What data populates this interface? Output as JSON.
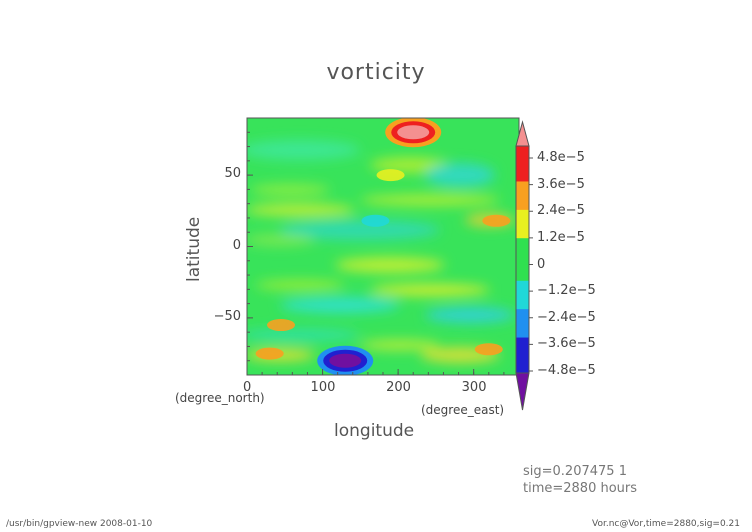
{
  "chart_data": {
    "type": "heatmap",
    "title": "vorticity",
    "xlabel": "longitude",
    "ylabel": "latitude",
    "x_unit": "(degree_east)",
    "y_unit": "(degree_north)",
    "xlim": [
      0,
      360
    ],
    "ylim": [
      -90,
      90
    ],
    "x_ticks": [
      "0",
      "100",
      "200",
      "300"
    ],
    "y_ticks": [
      "50",
      "0",
      "−50"
    ],
    "colorbar": {
      "labels": [
        "4.8e−5",
        "3.6e−5",
        "2.4e−5",
        "1.2e−5",
        "0",
        "−1.2e−5",
        "−2.4e−5",
        "−3.6e−5",
        "−4.8e−5"
      ],
      "min": -4.8e-05,
      "max": 4.8e-05
    },
    "features": [
      {
        "lon": 220,
        "lat": 80,
        "value": 5.5e-05
      },
      {
        "lon": 130,
        "lat": -80,
        "value": -5e-05
      },
      {
        "lon": 170,
        "lat": 18,
        "value": -1.5e-05
      },
      {
        "lon": 45,
        "lat": -55,
        "value": 2.8e-05
      },
      {
        "lon": 30,
        "lat": -75,
        "value": 2.5e-05
      },
      {
        "lon": 320,
        "lat": -72,
        "value": 2.6e-05
      },
      {
        "lon": 330,
        "lat": 18,
        "value": 2.2e-05
      },
      {
        "lon": 190,
        "lat": 50,
        "value": 1.6e-05
      }
    ]
  },
  "annotations": {
    "sig_line": "sig=0.207475 1",
    "time_line": "time=2880 hours"
  },
  "footer": {
    "left": "/usr/bin/gpview-new  2008-01-10",
    "right": "Vor.nc@Vor,time=2880,sig=0.21"
  },
  "colors": {
    "max": "#f49090",
    "strong_pos": "#ee2020",
    "pos": "#f8a020",
    "weak_pos": "#e8f020",
    "zero": "#30e050",
    "weak_neg": "#20d8d8",
    "neg": "#2090f0",
    "strong_neg": "#2020d0",
    "min": "#7010a0"
  }
}
